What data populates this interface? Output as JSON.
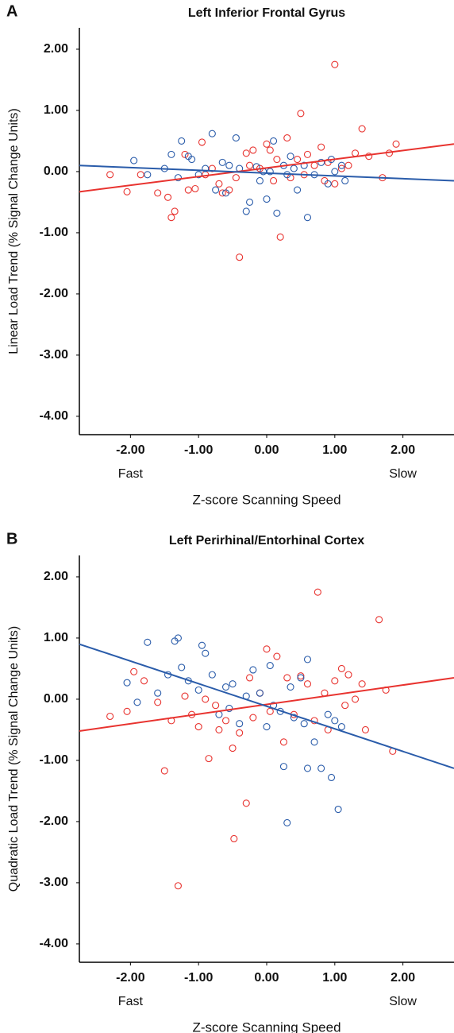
{
  "chart_data": [
    {
      "type": "scatter",
      "panel_label": "A",
      "title": "Left Inferior Frontal Gyrus",
      "ylabel": "Linear Load Trend (% Signal Change Units)",
      "xlabel": "Z-score Scanning Speed",
      "annotations": [
        "Fast",
        "Slow"
      ],
      "xlim": [
        -2.75,
        2.75
      ],
      "ylim": [
        -4.3,
        2.35
      ],
      "xticks": [
        {
          "value": -2,
          "label": "-2.00"
        },
        {
          "value": -1,
          "label": "-1.00"
        },
        {
          "value": 0,
          "label": "0.00"
        },
        {
          "value": 1,
          "label": "1.00"
        },
        {
          "value": 2,
          "label": "2.00"
        }
      ],
      "yticks": [
        {
          "value": 2,
          "label": "2.00"
        },
        {
          "value": 1,
          "label": "1.00"
        },
        {
          "value": 0,
          "label": "0.00"
        },
        {
          "value": -1,
          "label": "-1.00"
        },
        {
          "value": -2,
          "label": "-2.00"
        },
        {
          "value": -3,
          "label": "-3.00"
        },
        {
          "value": -4,
          "label": "-4.00"
        }
      ],
      "series": [
        {
          "color": "#e8332f",
          "x": [
            -2.3,
            -2.05,
            -1.85,
            -1.6,
            -1.45,
            -1.4,
            -1.35,
            -1.2,
            -1.15,
            -1.05,
            -0.95,
            -0.9,
            -0.8,
            -0.7,
            -0.65,
            -0.55,
            -0.45,
            -0.4,
            -0.3,
            -0.2,
            -0.1,
            0.0,
            0.05,
            0.1,
            0.2,
            0.3,
            0.35,
            0.45,
            0.5,
            0.6,
            0.7,
            0.8,
            0.9,
            1.0,
            1.0,
            1.1,
            1.2,
            1.3,
            1.4,
            1.5,
            1.7,
            1.8,
            1.9,
            0.15,
            -0.25,
            0.55,
            0.85
          ],
          "values": [
            -0.05,
            -0.33,
            -0.05,
            -0.35,
            -0.42,
            -0.75,
            -0.65,
            0.28,
            -0.3,
            -0.28,
            0.48,
            -0.05,
            0.05,
            -0.2,
            -0.35,
            -0.3,
            -0.1,
            -1.4,
            0.3,
            0.35,
            0.05,
            0.45,
            0.35,
            -0.15,
            -1.07,
            0.55,
            -0.1,
            0.2,
            0.95,
            0.28,
            0.1,
            0.4,
            0.15,
            1.75,
            -0.2,
            0.05,
            0.1,
            0.3,
            0.7,
            0.25,
            -0.1,
            0.3,
            0.45,
            0.2,
            0.1,
            -0.05,
            -0.15
          ],
          "fit": {
            "x": [
              -2.75,
              2.75
            ],
            "values": [
              -0.33,
              0.45
            ]
          }
        },
        {
          "color": "#2a5caa",
          "x": [
            -1.95,
            -1.75,
            -1.5,
            -1.4,
            -1.25,
            -1.15,
            -1.1,
            -1.0,
            -0.9,
            -0.8,
            -0.75,
            -0.65,
            -0.55,
            -0.45,
            -0.4,
            -0.3,
            -0.25,
            -0.15,
            -0.1,
            0.0,
            0.05,
            0.1,
            0.15,
            0.25,
            0.35,
            0.45,
            0.55,
            0.6,
            0.7,
            0.8,
            0.9,
            1.0,
            1.1,
            1.15,
            -0.6,
            -1.3,
            0.3,
            0.95,
            -0.05,
            0.4
          ],
          "values": [
            0.18,
            -0.05,
            0.05,
            0.28,
            0.5,
            0.25,
            0.2,
            -0.05,
            0.05,
            0.62,
            -0.3,
            0.15,
            0.1,
            0.55,
            0.05,
            -0.65,
            -0.5,
            0.08,
            -0.15,
            -0.45,
            0.0,
            0.5,
            -0.68,
            0.1,
            0.25,
            -0.3,
            0.1,
            -0.75,
            -0.05,
            0.15,
            -0.2,
            0.0,
            0.1,
            -0.15,
            -0.35,
            -0.1,
            -0.05,
            0.2,
            0.0,
            0.05
          ],
          "fit": {
            "x": [
              -2.75,
              2.75
            ],
            "values": [
              0.1,
              -0.15
            ]
          }
        }
      ]
    },
    {
      "type": "scatter",
      "panel_label": "B",
      "title": "Left Perirhinal/Entorhinal Cortex",
      "ylabel": "Quadratic Load Trend (% Signal Change Units)",
      "xlabel": "Z-score Scanning Speed",
      "annotations": [
        "Fast",
        "Slow"
      ],
      "xlim": [
        -2.75,
        2.75
      ],
      "ylim": [
        -4.3,
        2.35
      ],
      "xticks": [
        {
          "value": -2,
          "label": "-2.00"
        },
        {
          "value": -1,
          "label": "-1.00"
        },
        {
          "value": 0,
          "label": "0.00"
        },
        {
          "value": 1,
          "label": "1.00"
        },
        {
          "value": 2,
          "label": "2.00"
        }
      ],
      "yticks": [
        {
          "value": 2,
          "label": "2.00"
        },
        {
          "value": 1,
          "label": "1.00"
        },
        {
          "value": 0,
          "label": "0.00"
        },
        {
          "value": -1,
          "label": "-1.00"
        },
        {
          "value": -2,
          "label": "-2.00"
        },
        {
          "value": -3,
          "label": "-3.00"
        },
        {
          "value": -4,
          "label": "-4.00"
        }
      ],
      "series": [
        {
          "color": "#e8332f",
          "x": [
            -2.3,
            -2.05,
            -1.95,
            -1.8,
            -1.6,
            -1.5,
            -1.4,
            -1.3,
            -1.2,
            -1.1,
            -1.0,
            -0.9,
            -0.85,
            -0.75,
            -0.7,
            -0.6,
            -0.5,
            -0.48,
            -0.4,
            -0.3,
            -0.25,
            -0.2,
            -0.1,
            0.0,
            0.05,
            0.15,
            0.25,
            0.3,
            0.4,
            0.5,
            0.6,
            0.7,
            0.75,
            0.85,
            0.9,
            1.0,
            1.1,
            1.15,
            1.2,
            1.3,
            1.4,
            1.45,
            1.65,
            1.75,
            1.85
          ],
          "values": [
            -0.28,
            -0.2,
            0.45,
            0.3,
            -0.05,
            -1.17,
            -0.35,
            -3.05,
            0.05,
            -0.25,
            -0.45,
            0.0,
            -0.97,
            -0.1,
            -0.5,
            -0.35,
            -0.8,
            -2.28,
            -0.55,
            -1.7,
            0.35,
            -0.3,
            0.1,
            0.82,
            -0.2,
            0.7,
            -0.7,
            0.35,
            -0.25,
            0.38,
            0.25,
            -0.35,
            1.75,
            0.1,
            -0.5,
            0.3,
            0.5,
            -0.1,
            0.4,
            0.0,
            0.25,
            -0.5,
            1.3,
            0.15,
            -0.85
          ],
          "fit": {
            "x": [
              -2.75,
              2.75
            ],
            "values": [
              -0.52,
              0.35
            ]
          }
        },
        {
          "color": "#2a5caa",
          "x": [
            -2.05,
            -1.9,
            -1.75,
            -1.6,
            -1.45,
            -1.35,
            -1.3,
            -1.25,
            -1.15,
            -1.0,
            -0.95,
            -0.9,
            -0.8,
            -0.7,
            -0.6,
            -0.5,
            -0.4,
            -0.3,
            -0.2,
            -0.1,
            0.0,
            0.05,
            0.1,
            0.2,
            0.25,
            0.3,
            0.4,
            0.5,
            0.55,
            0.6,
            0.6,
            0.7,
            0.8,
            0.9,
            0.95,
            1.0,
            1.05,
            1.1,
            -0.55,
            0.35
          ],
          "values": [
            0.27,
            -0.05,
            0.93,
            0.1,
            0.4,
            0.95,
            1.0,
            0.52,
            0.3,
            0.15,
            0.88,
            0.75,
            0.4,
            -0.25,
            0.2,
            0.25,
            -0.4,
            0.05,
            0.48,
            0.1,
            -0.45,
            0.55,
            -0.1,
            -0.2,
            -1.1,
            -2.02,
            -0.3,
            0.35,
            -0.4,
            0.65,
            -1.13,
            -0.7,
            -1.13,
            -0.25,
            -1.28,
            -0.35,
            -1.8,
            -0.45,
            -0.15,
            0.2
          ],
          "fit": {
            "x": [
              -2.75,
              2.75
            ],
            "values": [
              0.9,
              -1.13
            ]
          }
        }
      ]
    }
  ]
}
